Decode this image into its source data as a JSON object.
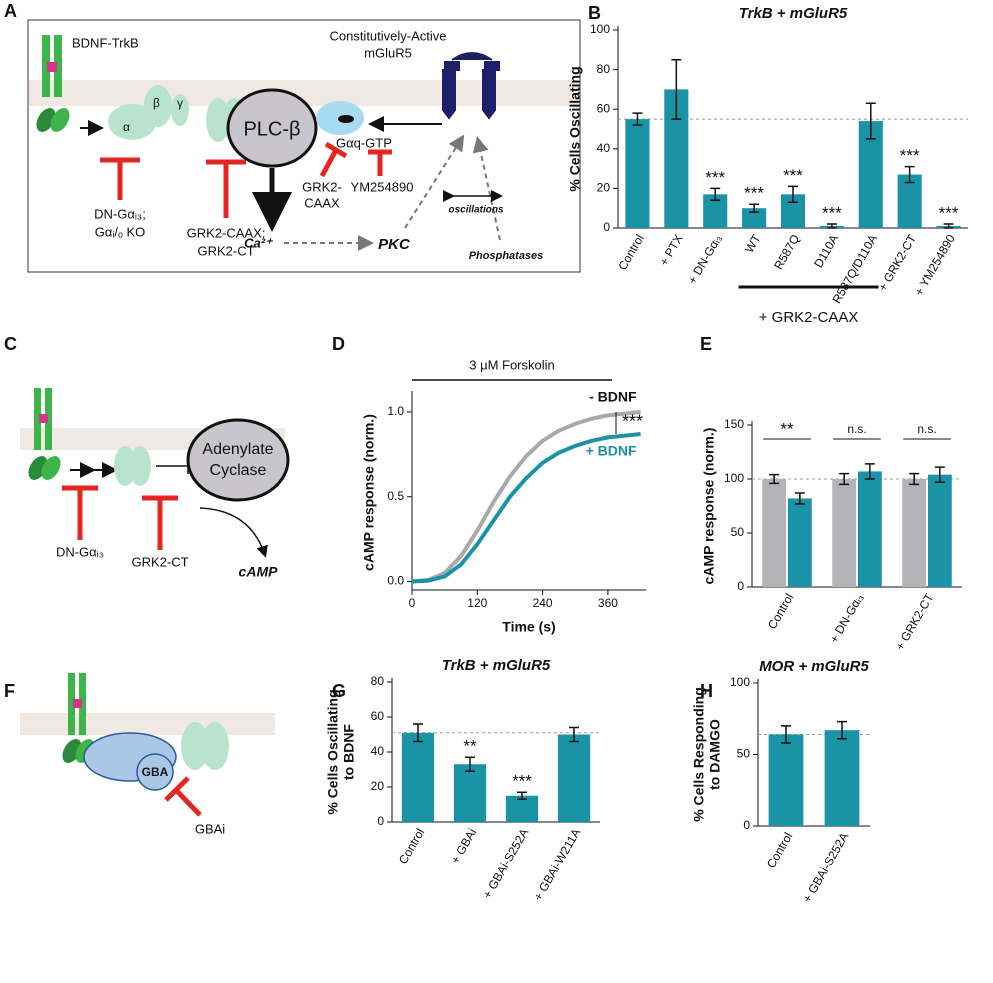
{
  "diagrams": {
    "A": {
      "panel": "A",
      "labels": [
        "BDNF-TrkB",
        "Constitutively-Active",
        "mGluR5",
        "α",
        "β",
        "γ",
        "PLC-β",
        "Gαq-GTP",
        "DN-Gαᵢ₃;",
        "Gαᵢ/ₒ KO",
        "GRK2-CAAX;",
        "GRK2-CT",
        "GRK2-",
        "CAAX",
        "YM254890",
        "Ca²⁺",
        "PKC",
        "oscillations",
        "Phosphatases"
      ]
    },
    "C": {
      "panel": "C",
      "labels": [
        "Adenylate",
        "Cyclase",
        "DN-Gαᵢ₃",
        "GRK2-CT",
        "cAMP"
      ]
    },
    "F": {
      "panel": "F",
      "labels": [
        "GBA",
        "GBAi"
      ]
    }
  },
  "chart_data": [
    {
      "panel": "B",
      "type": "bar",
      "title": "TrkB + mGluR5",
      "y_label": [
        "% Cells Oscillating"
      ],
      "categories": [
        "Control",
        "+ PTX",
        "+ DN-Gαᵢ₃",
        "WT",
        "R587Q",
        "D110A",
        "R587Q/D110A",
        "+ GRK2-CT",
        "+ YM254890"
      ],
      "values": [
        55,
        70,
        17,
        10,
        17,
        1,
        54,
        27,
        1
      ],
      "errors": [
        3,
        15,
        3,
        2,
        4,
        1,
        9,
        4,
        1
      ],
      "annotations": [
        null,
        null,
        "***",
        "***",
        "***",
        "***",
        null,
        "***",
        "***"
      ],
      "group_label": "+ GRK2-CAAX",
      "reference_line": 55,
      "color": "#1a93a6",
      "ylim": [
        0,
        100
      ],
      "yticks": [
        0,
        20,
        40,
        60,
        80,
        100
      ]
    },
    {
      "panel": "D",
      "type": "line",
      "title": "3 μM Forskolin",
      "x_label": "Time (s)",
      "y_label": [
        "cAMP response (norm.)"
      ],
      "x": [
        0,
        30,
        60,
        90,
        120,
        150,
        180,
        210,
        240,
        270,
        300,
        330,
        360,
        390,
        420
      ],
      "series": [
        {
          "name": "- BDNF",
          "color": "#a9a9ad",
          "values": [
            0,
            0.01,
            0.05,
            0.15,
            0.3,
            0.47,
            0.62,
            0.74,
            0.83,
            0.89,
            0.93,
            0.96,
            0.98,
            0.99,
            1.0
          ]
        },
        {
          "name": "+ BDNF",
          "color": "#1a93a6",
          "values": [
            0,
            0.005,
            0.03,
            0.1,
            0.22,
            0.36,
            0.5,
            0.61,
            0.7,
            0.76,
            0.8,
            0.83,
            0.85,
            0.86,
            0.87
          ]
        }
      ],
      "significance": "***",
      "xlim": [
        0,
        430
      ],
      "xticks": [
        0,
        120,
        240,
        360
      ],
      "ylim": [
        -0.05,
        1.1
      ],
      "yticks": [
        {
          "value": 0,
          "label": "0.0"
        },
        {
          "value": 0.5,
          "label": "0.5"
        },
        {
          "value": 1,
          "label": "1.0"
        }
      ]
    },
    {
      "panel": "E",
      "type": "bar",
      "y_label": [
        "cAMP response (norm.)"
      ],
      "categories": [
        "Control",
        "+ DN-Gαᵢ₃",
        "+ GRK2-CT"
      ],
      "series": [
        {
          "color": "#b4b4b8",
          "values": [
            100,
            100,
            100
          ],
          "errors": [
            4,
            5,
            5
          ]
        },
        {
          "color": "#1a93a6",
          "values": [
            82,
            107,
            104
          ],
          "errors": [
            5,
            7,
            7
          ]
        }
      ],
      "annotations": [
        "**",
        "n.s.",
        "n.s."
      ],
      "reference_line": 100,
      "ylim": [
        0,
        150
      ],
      "yticks": [
        0,
        50,
        100,
        150
      ]
    },
    {
      "panel": "G",
      "type": "bar",
      "title": "TrkB + mGluR5",
      "y_label": [
        "% Cells Oscillating",
        "to BDNF"
      ],
      "categories": [
        "Control",
        "+ GBAi",
        "+ GBAi-S252A",
        "+ GBAi-W211A"
      ],
      "values": [
        51,
        33,
        15,
        50
      ],
      "errors": [
        5,
        4,
        2,
        4
      ],
      "annotations": [
        null,
        "**",
        "***",
        null
      ],
      "reference_line": 51,
      "color": "#1a93a6",
      "ylim": [
        0,
        80
      ],
      "yticks": [
        0,
        20,
        40,
        60,
        80
      ]
    },
    {
      "panel": "H",
      "type": "bar",
      "title": "MOR + mGluR5",
      "y_label": [
        "% Cells Responding",
        "to DAMGO"
      ],
      "categories": [
        "Control",
        "+ GBAi-S252A"
      ],
      "values": [
        64,
        67
      ],
      "errors": [
        6,
        6
      ],
      "reference_line": 64,
      "color": "#1a93a6",
      "ylim": [
        0,
        100
      ],
      "yticks": [
        0,
        50,
        100
      ]
    }
  ]
}
